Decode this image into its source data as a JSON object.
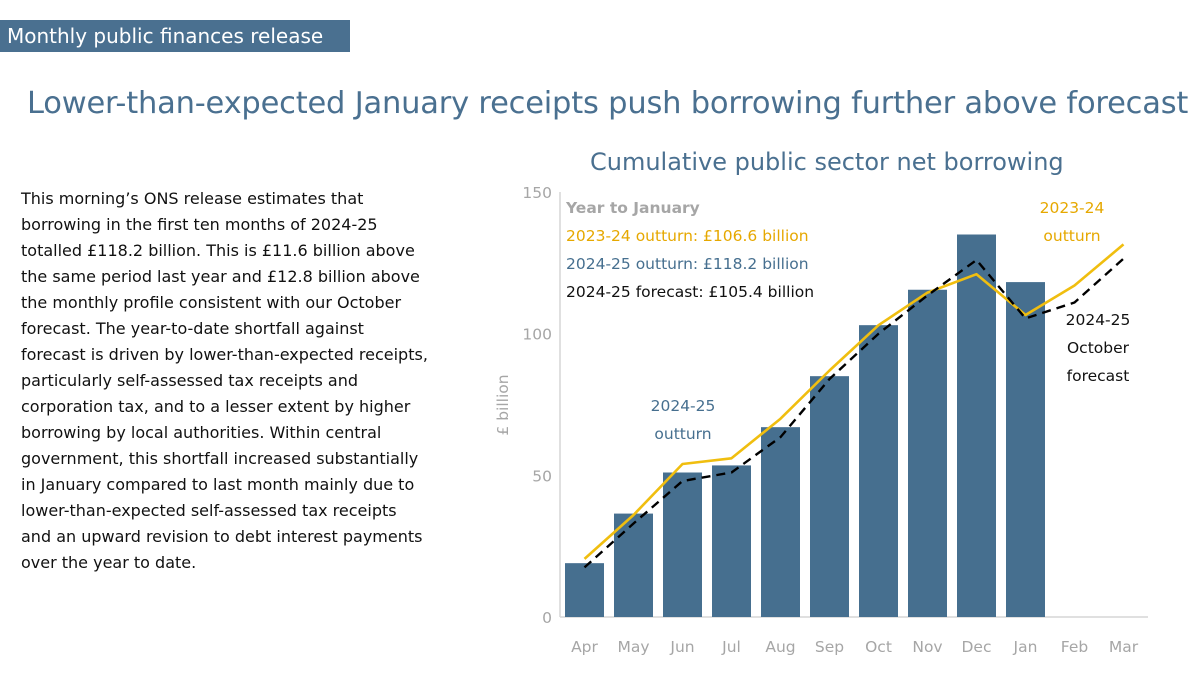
{
  "header": {
    "tag": "Monthly public finances release",
    "headline": "Lower-than-expected January receipts push borrowing further above forecast"
  },
  "body": {
    "paragraph": "This morning’s ONS release estimates that borrowing in the first ten months of 2024-25 totalled £118.2 billion. This is £11.6 billion above the same period last year and £12.8 billion above the monthly profile consistent with our October forecast. The year-to-date shortfall against forecast is driven by lower-than-expected receipts, particularly self-assessed tax receipts and corporation tax, and to a lesser extent by higher borrowing by local authorities. Within central government, this shortfall increased substantially in January compared to last month mainly due to lower-than-expected self-assessed tax receipts and an upward revision to debt interest payments over the year to date."
  },
  "chart_data": {
    "type": "bar",
    "title": "Cumulative public sector net borrowing",
    "ylabel": "£ billion",
    "xlabel": "",
    "ylim": [
      0,
      150
    ],
    "yticks": [
      0,
      50,
      100,
      150
    ],
    "categories": [
      "Apr",
      "May",
      "Jun",
      "Jul",
      "Aug",
      "Sep",
      "Oct",
      "Nov",
      "Dec",
      "Jan",
      "Feb",
      "Mar"
    ],
    "series": [
      {
        "name": "2024-25 outturn",
        "kind": "bar",
        "color": "#466f8f",
        "values": [
          19,
          36.5,
          51,
          53.5,
          67,
          85,
          103,
          115.5,
          135,
          118.2,
          null,
          null
        ]
      },
      {
        "name": "2023-24 outturn",
        "kind": "line",
        "color": "#f0be0f",
        "values": [
          20.5,
          36,
          54,
          56,
          70,
          87,
          103,
          114.5,
          121,
          106.6,
          117,
          131.5
        ]
      },
      {
        "name": "2024-25 forecast",
        "kind": "dashed-line",
        "color": "#000000",
        "values": [
          17.5,
          33,
          48,
          51,
          63.5,
          84,
          100,
          113.5,
          126,
          105.4,
          111,
          126.5
        ]
      }
    ],
    "legend": {
      "heading": "Year to January",
      "items": [
        {
          "text": "2023-24 outturn: £106.6 billion",
          "color": "#e6a800"
        },
        {
          "text": "2024-25 outturn: £118.2 billion",
          "color": "#466f8f"
        },
        {
          "text": "2024-25 forecast: £105.4 billion",
          "color": "#111111"
        }
      ]
    },
    "annotations": [
      {
        "lines": [
          "2023-24",
          "outturn"
        ],
        "color": "#e6a800"
      },
      {
        "lines": [
          "2024-25",
          "October",
          "forecast"
        ],
        "color": "#111111"
      },
      {
        "lines": [
          "2024-25",
          "outturn"
        ],
        "color": "#466f8f"
      }
    ]
  }
}
